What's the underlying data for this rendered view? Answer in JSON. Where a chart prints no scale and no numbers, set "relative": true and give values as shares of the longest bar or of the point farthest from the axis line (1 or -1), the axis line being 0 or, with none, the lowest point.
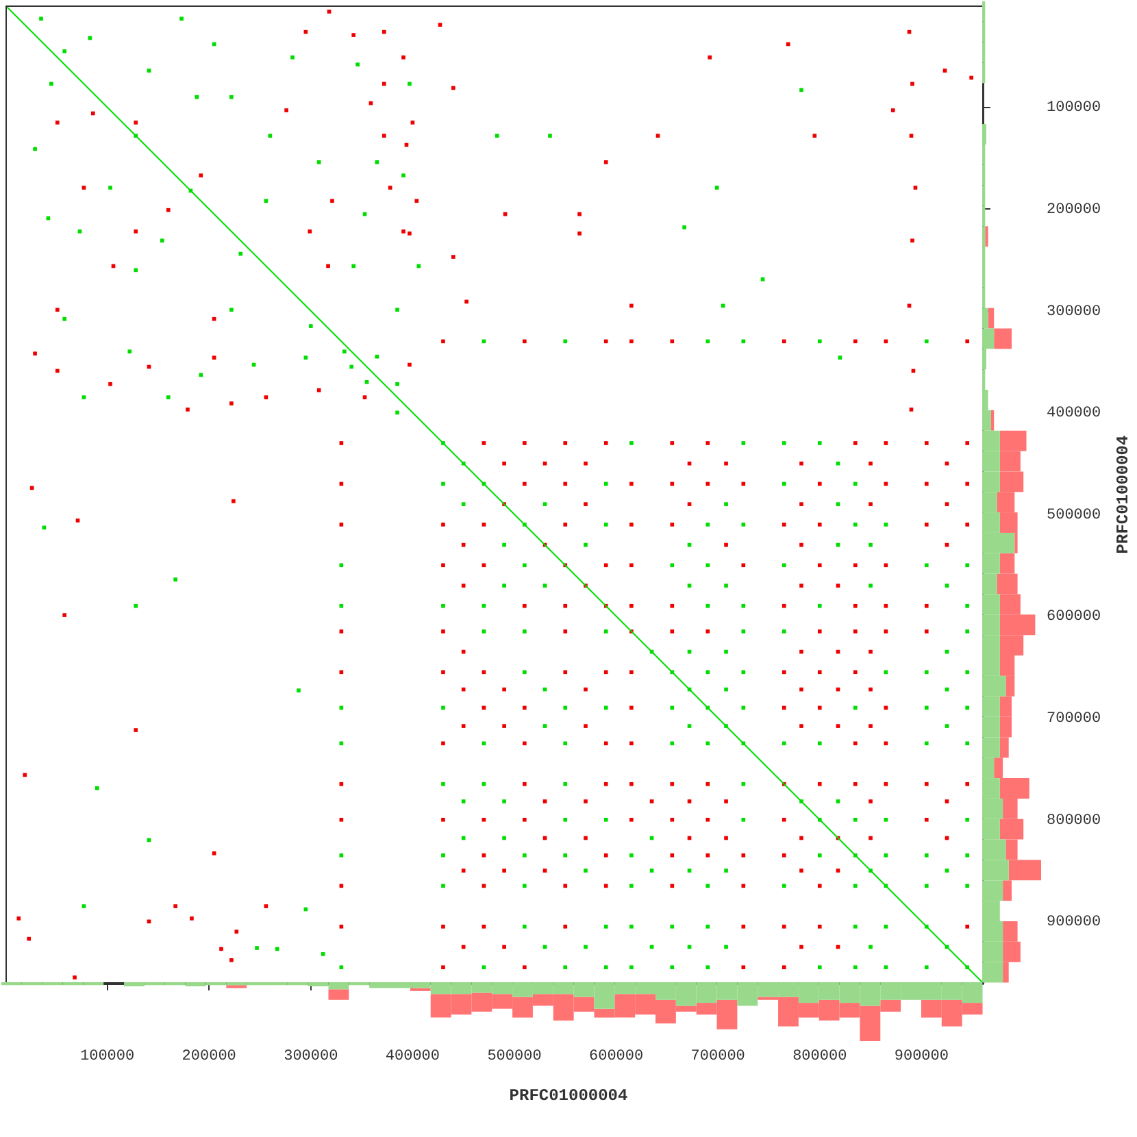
{
  "chart_data": [
    {
      "type": "scatter",
      "xlabel": "PRFC01000004",
      "ylabel": "PRFC01000004",
      "xlim": [
        0,
        961000
      ],
      "ylim": [
        961000,
        0
      ],
      "xticks": [
        100000,
        200000,
        300000,
        400000,
        500000,
        600000,
        700000,
        800000,
        900000
      ],
      "yticks": [
        100000,
        200000,
        300000,
        400000,
        500000,
        600000,
        700000,
        800000,
        900000
      ],
      "marker": "square",
      "series": [
        {
          "type": "line",
          "marker": "none",
          "color": "#00dd00",
          "x": [
            0,
            961000
          ],
          "values": [
            0,
            961000
          ]
        },
        {
          "color": "#00dd00",
          "x": [
            430000,
            615000,
            725000,
            765000,
            800000,
            430000,
            470000,
            590000,
            765000,
            835000,
            510000,
            590000,
            690000,
            725000,
            835000,
            865000,
            510000,
            655000,
            690000,
            765000,
            905000,
            945000,
            430000,
            470000,
            690000,
            725000,
            800000,
            945000,
            470000,
            510000,
            590000,
            725000,
            765000,
            945000,
            510000,
            655000,
            690000,
            725000,
            865000,
            905000,
            945000,
            430000,
            550000,
            590000,
            655000,
            690000,
            725000,
            835000,
            905000,
            945000,
            470000,
            550000,
            655000,
            690000,
            725000,
            765000,
            800000,
            905000,
            945000,
            430000,
            470000,
            550000,
            725000,
            550000,
            590000,
            725000,
            800000,
            835000,
            865000,
            945000,
            430000,
            510000,
            550000,
            615000,
            800000,
            835000,
            865000,
            905000,
            945000,
            430000,
            510000,
            615000,
            690000,
            765000,
            835000,
            865000,
            905000,
            945000,
            510000,
            590000,
            615000,
            655000,
            690000,
            835000,
            865000,
            905000,
            470000,
            550000,
            590000,
            615000,
            655000,
            690000,
            800000,
            835000,
            865000,
            905000,
            945000,
            330000,
            330000,
            330000,
            330000,
            330000,
            330000,
            470000,
            550000,
            690000,
            725000,
            800000,
            905000,
            340000,
            365000,
            385000,
            300000,
            355000,
            35000,
            58000,
            128000,
            182000,
            260000,
            483000,
            535000,
            222000,
            188000,
            73000,
            29000,
            42000,
            128000,
            342000,
            406000,
            385000,
            222000,
            77000,
            160000,
            192000,
            122000,
            244000,
            295000,
            333000,
            385000,
            397000,
            391000,
            346000,
            365000,
            353000,
            173000,
            699000,
            667000,
            705000,
            744000,
            782000,
            820000,
            167000,
            128000,
            77000,
            295000,
            288000,
            247000,
            267000,
            312000,
            83000,
            103000,
            256000,
            308000,
            231000,
            58000,
            205000,
            141000,
            282000,
            45000,
            154000,
            38000,
            90000,
            141000,
            450000,
            818000,
            450000,
            530000,
            708000,
            818000,
            490000,
            570000,
            672000,
            818000,
            850000,
            490000,
            530000,
            672000,
            708000,
            850000,
            925000,
            635000,
            672000,
            708000,
            925000,
            530000,
            672000,
            708000,
            925000,
            530000,
            672000,
            708000,
            925000,
            450000,
            490000,
            782000,
            818000,
            450000,
            490000,
            635000,
            570000,
            635000,
            672000,
            708000,
            850000,
            925000,
            530000,
            570000,
            635000,
            672000,
            708000,
            850000,
            925000
          ],
          "values": [
            430000,
            430000,
            430000,
            430000,
            430000,
            470000,
            470000,
            470000,
            470000,
            470000,
            510000,
            510000,
            510000,
            510000,
            510000,
            510000,
            550000,
            550000,
            550000,
            550000,
            550000,
            550000,
            590000,
            590000,
            590000,
            590000,
            590000,
            590000,
            615000,
            615000,
            615000,
            615000,
            615000,
            615000,
            655000,
            655000,
            655000,
            655000,
            655000,
            655000,
            655000,
            690000,
            690000,
            690000,
            690000,
            690000,
            690000,
            690000,
            690000,
            690000,
            725000,
            725000,
            725000,
            725000,
            725000,
            725000,
            725000,
            725000,
            725000,
            765000,
            765000,
            765000,
            765000,
            800000,
            800000,
            800000,
            800000,
            800000,
            800000,
            800000,
            835000,
            835000,
            835000,
            835000,
            835000,
            835000,
            835000,
            835000,
            835000,
            865000,
            865000,
            865000,
            865000,
            865000,
            865000,
            865000,
            865000,
            865000,
            905000,
            905000,
            905000,
            905000,
            905000,
            905000,
            905000,
            905000,
            945000,
            945000,
            945000,
            945000,
            945000,
            945000,
            945000,
            945000,
            945000,
            945000,
            945000,
            550000,
            590000,
            690000,
            725000,
            835000,
            945000,
            330000,
            330000,
            330000,
            330000,
            330000,
            330000,
            355000,
            345000,
            400000,
            315000,
            370000,
            13000,
            45000,
            128000,
            182000,
            128000,
            128000,
            128000,
            90000,
            90000,
            222000,
            141000,
            209000,
            260000,
            256000,
            256000,
            299000,
            299000,
            385000,
            385000,
            363000,
            340000,
            353000,
            346000,
            340000,
            372000,
            77000,
            167000,
            58000,
            154000,
            205000,
            13000,
            179000,
            218000,
            295000,
            269000,
            83000,
            346000,
            564000,
            590000,
            885000,
            888000,
            673000,
            926000,
            927000,
            932000,
            32000,
            179000,
            192000,
            154000,
            244000,
            308000,
            38000,
            64000,
            51000,
            77000,
            231000,
            513000,
            769000,
            820000,
            450000,
            450000,
            490000,
            490000,
            490000,
            490000,
            530000,
            530000,
            530000,
            530000,
            530000,
            570000,
            570000,
            570000,
            570000,
            570000,
            570000,
            635000,
            635000,
            635000,
            635000,
            672000,
            672000,
            672000,
            672000,
            708000,
            708000,
            708000,
            708000,
            782000,
            782000,
            782000,
            782000,
            818000,
            818000,
            818000,
            850000,
            850000,
            850000,
            850000,
            850000,
            850000,
            925000,
            925000,
            925000,
            925000,
            925000,
            925000,
            925000
          ]
        },
        {
          "color": "#ee0000",
          "x": [
            470000,
            510000,
            550000,
            590000,
            655000,
            690000,
            835000,
            865000,
            905000,
            945000,
            510000,
            550000,
            615000,
            655000,
            690000,
            725000,
            800000,
            865000,
            905000,
            945000,
            430000,
            470000,
            550000,
            615000,
            655000,
            765000,
            800000,
            905000,
            945000,
            430000,
            470000,
            550000,
            590000,
            615000,
            725000,
            800000,
            835000,
            865000,
            510000,
            550000,
            590000,
            615000,
            655000,
            765000,
            835000,
            865000,
            905000,
            430000,
            550000,
            615000,
            655000,
            690000,
            800000,
            835000,
            865000,
            905000,
            430000,
            470000,
            550000,
            590000,
            615000,
            765000,
            800000,
            835000,
            470000,
            510000,
            615000,
            765000,
            800000,
            865000,
            430000,
            510000,
            590000,
            615000,
            835000,
            865000,
            510000,
            590000,
            615000,
            655000,
            690000,
            765000,
            800000,
            835000,
            865000,
            905000,
            945000,
            430000,
            470000,
            510000,
            615000,
            655000,
            690000,
            765000,
            905000,
            470000,
            590000,
            655000,
            690000,
            725000,
            765000,
            470000,
            550000,
            590000,
            655000,
            725000,
            800000,
            430000,
            470000,
            550000,
            725000,
            765000,
            800000,
            945000,
            430000,
            510000,
            725000,
            765000,
            330000,
            330000,
            330000,
            330000,
            330000,
            330000,
            330000,
            330000,
            330000,
            430000,
            510000,
            590000,
            615000,
            655000,
            765000,
            835000,
            865000,
            945000,
            391000,
            372000,
            372000,
            372000,
            342000,
            394000,
            440000,
            491000,
            427000,
            128000,
            160000,
            299000,
            128000,
            86000,
            51000,
            106000,
            317000,
            440000,
            453000,
            51000,
            205000,
            29000,
            51000,
            103000,
            141000,
            179000,
            205000,
            222000,
            256000,
            308000,
            353000,
            397000,
            391000,
            400000,
            404000,
            397000,
            359000,
            378000,
            318000,
            888000,
            891000,
            890000,
            894000,
            891000,
            888000,
            892000,
            890000,
            641000,
            590000,
            692000,
            769000,
            872000,
            923000,
            949000,
            615000,
            564000,
            564000,
            795000,
            71000,
            58000,
            19000,
            128000,
            26000,
            224000,
            205000,
            167000,
            256000,
            13000,
            23000,
            68000,
            141000,
            183000,
            227000,
            212000,
            222000,
            295000,
            276000,
            192000,
            77000,
            321000,
            490000,
            530000,
            570000,
            672000,
            708000,
            782000,
            850000,
            925000,
            490000,
            570000,
            672000,
            782000,
            850000,
            925000,
            450000,
            530000,
            708000,
            782000,
            925000,
            450000,
            570000,
            782000,
            818000,
            450000,
            782000,
            818000,
            850000,
            450000,
            490000,
            570000,
            782000,
            818000,
            850000,
            450000,
            490000,
            570000,
            782000,
            818000,
            850000,
            530000,
            570000,
            635000,
            672000,
            708000,
            850000,
            925000,
            530000,
            570000,
            672000,
            708000,
            782000,
            818000,
            850000,
            925000,
            450000,
            490000,
            530000,
            782000,
            818000,
            450000,
            490000,
            782000,
            818000
          ],
          "values": [
            430000,
            430000,
            430000,
            430000,
            430000,
            430000,
            430000,
            430000,
            430000,
            430000,
            470000,
            470000,
            470000,
            470000,
            470000,
            470000,
            470000,
            470000,
            470000,
            470000,
            510000,
            510000,
            510000,
            510000,
            510000,
            510000,
            510000,
            510000,
            510000,
            550000,
            550000,
            550000,
            550000,
            550000,
            550000,
            550000,
            550000,
            550000,
            590000,
            590000,
            590000,
            590000,
            590000,
            590000,
            590000,
            590000,
            590000,
            615000,
            615000,
            615000,
            615000,
            615000,
            615000,
            615000,
            615000,
            615000,
            655000,
            655000,
            655000,
            655000,
            655000,
            655000,
            655000,
            655000,
            690000,
            690000,
            690000,
            690000,
            690000,
            690000,
            725000,
            725000,
            725000,
            725000,
            725000,
            725000,
            765000,
            765000,
            765000,
            765000,
            765000,
            765000,
            765000,
            765000,
            765000,
            765000,
            765000,
            800000,
            800000,
            800000,
            800000,
            800000,
            800000,
            800000,
            800000,
            835000,
            835000,
            835000,
            835000,
            835000,
            835000,
            865000,
            865000,
            865000,
            865000,
            865000,
            865000,
            905000,
            905000,
            905000,
            905000,
            905000,
            905000,
            905000,
            945000,
            945000,
            945000,
            945000,
            430000,
            470000,
            510000,
            615000,
            655000,
            765000,
            800000,
            865000,
            905000,
            330000,
            330000,
            330000,
            330000,
            330000,
            330000,
            330000,
            330000,
            330000,
            222000,
            26000,
            77000,
            128000,
            29000,
            137000,
            81000,
            205000,
            19000,
            115000,
            201000,
            222000,
            222000,
            106000,
            115000,
            256000,
            256000,
            247000,
            291000,
            299000,
            308000,
            342000,
            359000,
            372000,
            355000,
            397000,
            346000,
            391000,
            385000,
            378000,
            385000,
            353000,
            51000,
            115000,
            192000,
            224000,
            96000,
            179000,
            6000,
            26000,
            77000,
            128000,
            179000,
            231000,
            295000,
            359000,
            397000,
            128000,
            154000,
            51000,
            38000,
            103000,
            64000,
            71000,
            295000,
            205000,
            224000,
            128000,
            506000,
            599000,
            756000,
            712000,
            474000,
            487000,
            833000,
            885000,
            885000,
            897000,
            917000,
            955000,
            900000,
            897000,
            910000,
            927000,
            938000,
            26000,
            103000,
            167000,
            179000,
            192000,
            450000,
            450000,
            450000,
            450000,
            450000,
            450000,
            450000,
            450000,
            490000,
            490000,
            490000,
            490000,
            490000,
            490000,
            530000,
            530000,
            530000,
            530000,
            530000,
            570000,
            570000,
            570000,
            570000,
            635000,
            635000,
            635000,
            635000,
            672000,
            672000,
            672000,
            672000,
            672000,
            672000,
            708000,
            708000,
            708000,
            708000,
            708000,
            708000,
            782000,
            782000,
            782000,
            782000,
            782000,
            782000,
            782000,
            818000,
            818000,
            818000,
            818000,
            818000,
            818000,
            818000,
            818000,
            850000,
            850000,
            850000,
            850000,
            850000,
            925000,
            925000,
            925000,
            925000
          ]
        }
      ]
    },
    {
      "type": "bar",
      "relative": true,
      "stacked": true,
      "tick_labels": false,
      "xlim": [
        0,
        961000
      ],
      "x": [
        10000,
        30000,
        50000,
        70000,
        90000,
        110000,
        130000,
        150000,
        170000,
        190000,
        210000,
        230000,
        250000,
        270000,
        290000,
        310000,
        330000,
        350000,
        370000,
        390000,
        410000,
        430000,
        450000,
        470000,
        490000,
        510000,
        530000,
        550000,
        570000,
        590000,
        610000,
        630000,
        650000,
        670000,
        690000,
        710000,
        730000,
        750000,
        770000,
        790000,
        810000,
        830000,
        850000,
        870000,
        890000,
        910000,
        930000,
        950000
      ],
      "series": [
        {
          "color": "#99d98c",
          "values": [
            -0.05,
            -0.05,
            -0.05,
            -0.05,
            -0.05,
            null,
            -0.07,
            -0.05,
            -0.05,
            -0.07,
            -0.05,
            -0.05,
            -0.05,
            -0.05,
            -0.05,
            -0.07,
            -0.12,
            -0.05,
            -0.1,
            -0.1,
            -0.1,
            -0.2,
            -0.2,
            -0.18,
            -0.2,
            -0.25,
            -0.2,
            -0.2,
            -0.25,
            -0.45,
            -0.2,
            -0.2,
            -0.3,
            -0.4,
            -0.35,
            -0.3,
            -0.4,
            -0.25,
            -0.25,
            -0.35,
            -0.3,
            -0.35,
            -0.4,
            -0.3,
            -0.3,
            -0.3,
            -0.3,
            -0.35
          ]
        },
        {
          "color": "#ff7373",
          "values": [
            null,
            null,
            null,
            null,
            null,
            null,
            null,
            null,
            null,
            null,
            null,
            -0.05,
            null,
            null,
            null,
            null,
            -0.18,
            null,
            null,
            null,
            -0.05,
            -0.4,
            -0.35,
            -0.32,
            -0.25,
            -0.35,
            -0.2,
            -0.45,
            -0.25,
            -0.15,
            -0.4,
            -0.35,
            -0.4,
            -0.1,
            -0.2,
            -0.5,
            null,
            -0.05,
            -0.5,
            -0.25,
            -0.35,
            -0.25,
            -0.6,
            -0.2,
            null,
            -0.3,
            -0.45,
            -0.2
          ]
        }
      ]
    },
    {
      "type": "bar",
      "relative": true,
      "stacked": true,
      "orientation": "horizontal",
      "tick_labels": false,
      "ylim": [
        961000,
        0
      ],
      "x": [
        10000,
        30000,
        50000,
        70000,
        90000,
        110000,
        130000,
        150000,
        170000,
        190000,
        210000,
        230000,
        250000,
        270000,
        290000,
        310000,
        330000,
        350000,
        370000,
        390000,
        410000,
        430000,
        450000,
        470000,
        490000,
        510000,
        530000,
        550000,
        570000,
        590000,
        610000,
        630000,
        650000,
        670000,
        690000,
        710000,
        730000,
        750000,
        770000,
        790000,
        810000,
        830000,
        850000,
        870000,
        890000,
        910000,
        930000,
        950000
      ],
      "series": [
        {
          "color": "#99d98c",
          "values": [
            0.05,
            0.05,
            0.05,
            0.05,
            null,
            null,
            0.07,
            0.05,
            0.05,
            0.05,
            0.05,
            0.05,
            0.05,
            0.05,
            0.05,
            0.1,
            0.2,
            0.07,
            0.05,
            0.1,
            0.15,
            0.3,
            0.3,
            0.3,
            0.25,
            0.3,
            0.55,
            0.3,
            0.25,
            0.3,
            0.3,
            0.3,
            0.3,
            0.4,
            0.3,
            0.3,
            0.3,
            0.2,
            0.3,
            0.35,
            0.3,
            0.4,
            0.45,
            0.35,
            0.3,
            0.35,
            0.35,
            0.35
          ]
        },
        {
          "color": "#ff7373",
          "values": [
            null,
            null,
            null,
            null,
            null,
            null,
            null,
            null,
            null,
            null,
            null,
            0.05,
            null,
            null,
            null,
            0.1,
            0.3,
            null,
            null,
            null,
            0.05,
            0.45,
            0.35,
            0.4,
            0.3,
            0.3,
            0.05,
            0.25,
            0.35,
            0.35,
            0.6,
            0.4,
            0.25,
            0.15,
            0.2,
            0.2,
            0.15,
            0.15,
            0.5,
            0.25,
            0.4,
            0.2,
            0.55,
            0.15,
            null,
            0.25,
            0.3,
            0.1
          ]
        }
      ]
    }
  ]
}
